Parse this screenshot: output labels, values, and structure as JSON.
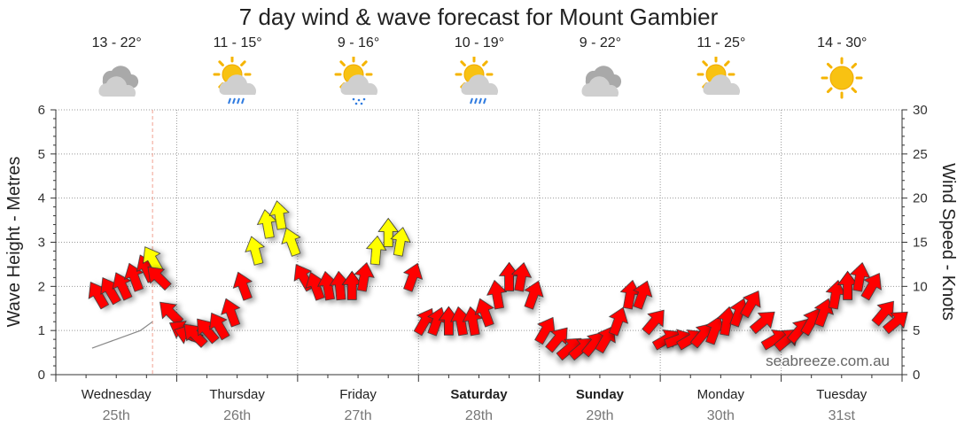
{
  "title": "7 day wind & wave forecast for Mount Gambier",
  "watermark": "seabreeze.com.au",
  "days": [
    {
      "name": "Wednesday",
      "date": "25th",
      "temp": "13 - 22°",
      "icon": "cloudy-icon",
      "bold": false
    },
    {
      "name": "Thursday",
      "date": "26th",
      "temp": "11 - 15°",
      "icon": "sun-cloud-rain-icon",
      "bold": false
    },
    {
      "name": "Friday",
      "date": "27th",
      "temp": "9 - 16°",
      "icon": "sun-cloud-drizzle-icon",
      "bold": false
    },
    {
      "name": "Saturday",
      "date": "28th",
      "temp": "10 - 19°",
      "icon": "sun-cloud-rain-icon",
      "bold": true
    },
    {
      "name": "Sunday",
      "date": "29th",
      "temp": "9 - 22°",
      "icon": "cloudy-icon",
      "bold": true
    },
    {
      "name": "Monday",
      "date": "30th",
      "temp": "11 - 25°",
      "icon": "sun-cloud-icon",
      "bold": false
    },
    {
      "name": "Tuesday",
      "date": "31st",
      "temp": "14 - 30°",
      "icon": "sun-icon",
      "bold": false
    }
  ],
  "colors": {
    "strong_wind": "#ff0000",
    "moderate_wind": "#ffff00",
    "grid": "#999999",
    "now_line": "#f0a090"
  },
  "chart_data": {
    "type": "line",
    "ylabel": "Wave Height - Metres",
    "y2label": "Wind Speed - Knots",
    "ylim": [
      0,
      6
    ],
    "y2lim": [
      0,
      30
    ],
    "yticks": [
      "0",
      "1",
      "2",
      "3",
      "4",
      "5",
      "6"
    ],
    "y2ticks": [
      "0",
      "5",
      "10",
      "15",
      "20",
      "25",
      "30"
    ],
    "x_unit": "days from start of Wednesday",
    "now_x": 0.8,
    "series": [
      {
        "axis": "wind",
        "color_threshold_knots": 12,
        "x": [
          0.35,
          0.45,
          0.55,
          0.65,
          0.75,
          0.8,
          0.85,
          0.95,
          1.05,
          1.1,
          1.15,
          1.25,
          1.35,
          1.45,
          1.55,
          1.65,
          1.75,
          1.85,
          1.95,
          2.05,
          2.15,
          2.25,
          2.35,
          2.45,
          2.55,
          2.65,
          2.75,
          2.85,
          2.95,
          3.05,
          3.15,
          3.25,
          3.35,
          3.45,
          3.55,
          3.65,
          3.75,
          3.85,
          3.95,
          4.05,
          4.15,
          4.25,
          4.35,
          4.45,
          4.55,
          4.65,
          4.75,
          4.85,
          4.95,
          5.05,
          5.15,
          5.25,
          5.35,
          5.45,
          5.55,
          5.65,
          5.75,
          5.85,
          5.95,
          6.05,
          6.15,
          6.25,
          6.35,
          6.45,
          6.55,
          6.65,
          6.75,
          6.85,
          6.95
        ],
        "y": [
          9,
          9.5,
          10,
          11,
          12,
          13,
          11,
          7,
          5,
          4.5,
          4.5,
          5,
          5.5,
          7,
          10,
          14,
          17,
          18,
          15,
          11,
          10,
          10,
          10,
          10,
          11,
          14,
          16,
          15,
          11,
          6,
          6,
          6,
          6,
          6,
          7,
          9,
          11,
          11,
          9,
          5,
          4,
          3,
          3,
          3.5,
          4,
          6,
          9,
          9,
          6,
          4,
          4,
          4,
          4.5,
          5,
          6,
          7,
          8,
          6,
          4,
          4,
          5,
          6,
          7,
          9,
          10,
          11,
          10,
          7,
          6
        ],
        "dir": [
          -30,
          -30,
          -25,
          -20,
          -25,
          -30,
          -45,
          -45,
          -60,
          -70,
          -45,
          -40,
          -30,
          -20,
          -20,
          -15,
          -10,
          -10,
          -20,
          -30,
          -20,
          -10,
          -5,
          0,
          10,
          5,
          0,
          10,
          20,
          30,
          20,
          0,
          -10,
          -10,
          -20,
          -10,
          0,
          10,
          20,
          30,
          40,
          50,
          50,
          40,
          30,
          20,
          10,
          20,
          40,
          60,
          70,
          60,
          40,
          20,
          10,
          20,
          30,
          50,
          60,
          50,
          40,
          30,
          20,
          10,
          0,
          10,
          30,
          40,
          50
        ]
      },
      {
        "axis": "wave",
        "x": [
          0.3,
          0.4,
          0.5,
          0.6,
          0.7,
          0.8
        ],
        "y": [
          0.6,
          0.7,
          0.8,
          0.9,
          1.0,
          1.2
        ]
      }
    ]
  }
}
